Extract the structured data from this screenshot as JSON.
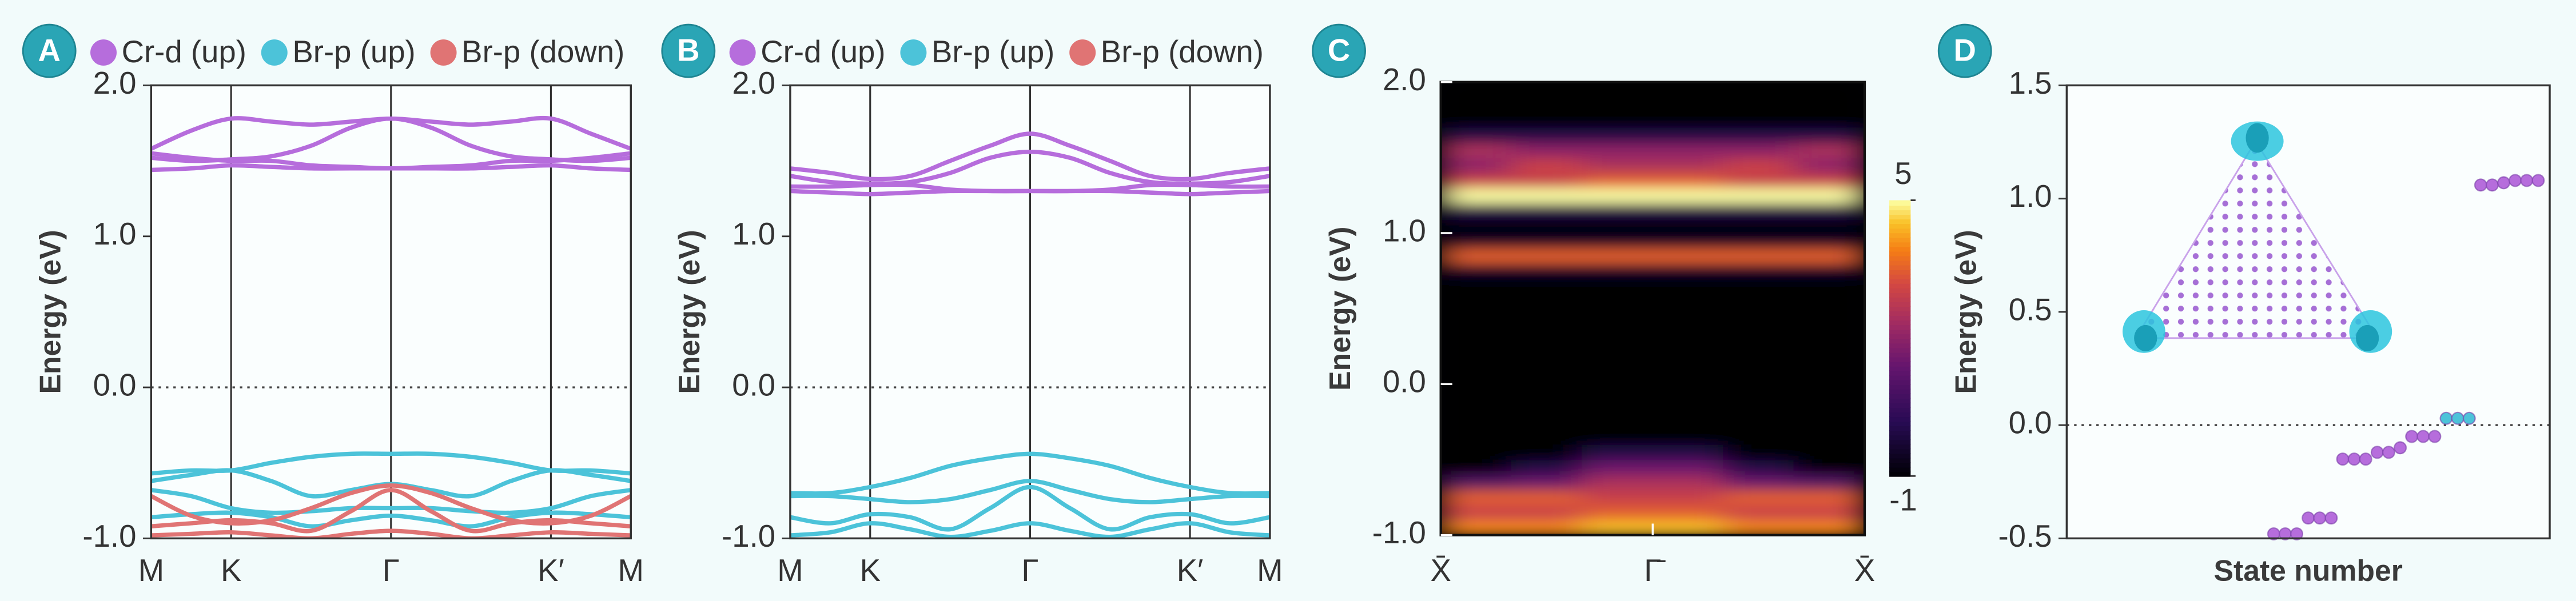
{
  "chart_data": [
    {
      "type": "band_structure",
      "panel_label": "A",
      "ylabel": "Energy (eV)",
      "x": [
        0,
        0.5,
        1,
        1.5,
        2,
        2.5,
        3,
        3.5,
        4,
        4.5,
        5,
        5.5,
        6
      ],
      "xlim": [
        0,
        6
      ],
      "xticks": [
        {
          "value": 0,
          "label": "M"
        },
        {
          "value": 1,
          "label": "K"
        },
        {
          "value": 3,
          "label": "Γ"
        },
        {
          "value": 5,
          "label": "K′"
        },
        {
          "value": 6,
          "label": "M"
        }
      ],
      "ylim": [
        -1,
        2
      ],
      "yticks": [
        {
          "value": -1,
          "label": "-1.0"
        },
        {
          "value": 0,
          "label": "0.0"
        },
        {
          "value": 1,
          "label": "1.0"
        },
        {
          "value": 2,
          "label": "2.0"
        }
      ],
      "hline": 0,
      "series": [
        {
          "name": "Cr-d (up)",
          "color": "#b66ddc",
          "bands": [
            [
              1.58,
              1.7,
              1.78,
              1.76,
              1.74,
              1.76,
              1.78,
              1.76,
              1.74,
              1.76,
              1.78,
              1.68,
              1.58
            ],
            [
              1.52,
              1.5,
              1.51,
              1.53,
              1.6,
              1.72,
              1.78,
              1.72,
              1.6,
              1.53,
              1.51,
              1.5,
              1.52
            ],
            [
              1.55,
              1.52,
              1.5,
              1.5,
              1.47,
              1.46,
              1.45,
              1.46,
              1.47,
              1.5,
              1.5,
              1.52,
              1.55
            ],
            [
              1.44,
              1.45,
              1.47,
              1.46,
              1.45,
              1.45,
              1.45,
              1.45,
              1.45,
              1.46,
              1.47,
              1.45,
              1.44
            ]
          ]
        },
        {
          "name": "Br-p (up)",
          "color": "#4cc3d9",
          "bands": [
            [
              -0.57,
              -0.55,
              -0.55,
              -0.5,
              -0.46,
              -0.44,
              -0.44,
              -0.44,
              -0.46,
              -0.5,
              -0.55,
              -0.55,
              -0.57
            ],
            [
              -0.62,
              -0.58,
              -0.55,
              -0.62,
              -0.72,
              -0.68,
              -0.64,
              -0.68,
              -0.72,
              -0.62,
              -0.55,
              -0.58,
              -0.62
            ],
            [
              -0.68,
              -0.72,
              -0.8,
              -0.83,
              -0.82,
              -0.8,
              -0.8,
              -0.8,
              -0.82,
              -0.83,
              -0.8,
              -0.72,
              -0.68
            ],
            [
              -0.86,
              -0.84,
              -0.83,
              -0.86,
              -0.92,
              -0.88,
              -0.85,
              -0.88,
              -0.92,
              -0.86,
              -0.83,
              -0.84,
              -0.86
            ]
          ]
        },
        {
          "name": "Br-p (down)",
          "color": "#e07474",
          "bands": [
            [
              -0.72,
              -0.85,
              -0.9,
              -0.88,
              -0.8,
              -0.7,
              -0.65,
              -0.7,
              -0.8,
              -0.88,
              -0.9,
              -0.85,
              -0.72
            ],
            [
              -0.92,
              -0.9,
              -0.88,
              -0.9,
              -0.95,
              -0.82,
              -0.68,
              -0.82,
              -0.95,
              -0.9,
              -0.88,
              -0.9,
              -0.92
            ],
            [
              -0.98,
              -0.97,
              -0.96,
              -0.98,
              -1.0,
              -0.97,
              -0.95,
              -0.97,
              -1.0,
              -0.98,
              -0.96,
              -0.97,
              -0.98
            ]
          ]
        }
      ]
    },
    {
      "type": "band_structure",
      "panel_label": "B",
      "ylabel": "Energy (eV)",
      "x": [
        0,
        0.5,
        1,
        1.5,
        2,
        2.5,
        3,
        3.5,
        4,
        4.5,
        5,
        5.5,
        6
      ],
      "xlim": [
        0,
        6
      ],
      "xticks": [
        {
          "value": 0,
          "label": "M"
        },
        {
          "value": 1,
          "label": "K"
        },
        {
          "value": 3,
          "label": "Γ"
        },
        {
          "value": 5,
          "label": "K′"
        },
        {
          "value": 6,
          "label": "M"
        }
      ],
      "ylim": [
        -1,
        2
      ],
      "yticks": [
        {
          "value": -1,
          "label": "-1.0"
        },
        {
          "value": 0,
          "label": "0.0"
        },
        {
          "value": 1,
          "label": "1.0"
        },
        {
          "value": 2,
          "label": "2.0"
        }
      ],
      "hline": 0,
      "series": [
        {
          "name": "Cr-d (up)",
          "color": "#b66ddc",
          "bands": [
            [
              1.45,
              1.42,
              1.38,
              1.4,
              1.5,
              1.6,
              1.68,
              1.6,
              1.5,
              1.4,
              1.38,
              1.42,
              1.45
            ],
            [
              1.4,
              1.36,
              1.35,
              1.36,
              1.42,
              1.52,
              1.56,
              1.52,
              1.42,
              1.36,
              1.35,
              1.36,
              1.4
            ],
            [
              1.33,
              1.33,
              1.34,
              1.34,
              1.31,
              1.3,
              1.3,
              1.3,
              1.31,
              1.34,
              1.34,
              1.33,
              1.33
            ],
            [
              1.3,
              1.29,
              1.28,
              1.29,
              1.3,
              1.3,
              1.3,
              1.3,
              1.3,
              1.29,
              1.28,
              1.29,
              1.3
            ]
          ]
        },
        {
          "name": "Br-p (up)",
          "color": "#4cc3d9",
          "bands": [
            [
              -0.7,
              -0.7,
              -0.66,
              -0.6,
              -0.52,
              -0.47,
              -0.44,
              -0.47,
              -0.52,
              -0.6,
              -0.66,
              -0.7,
              -0.7
            ],
            [
              -0.72,
              -0.72,
              -0.74,
              -0.76,
              -0.74,
              -0.68,
              -0.62,
              -0.68,
              -0.74,
              -0.76,
              -0.74,
              -0.72,
              -0.72
            ],
            [
              -0.86,
              -0.9,
              -0.84,
              -0.86,
              -0.94,
              -0.8,
              -0.66,
              -0.8,
              -0.94,
              -0.86,
              -0.84,
              -0.9,
              -0.86
            ],
            [
              -0.98,
              -0.96,
              -0.9,
              -0.94,
              -0.99,
              -0.95,
              -0.9,
              -0.95,
              -0.99,
              -0.94,
              -0.9,
              -0.96,
              -0.98
            ]
          ]
        },
        {
          "name": "Br-p (down)",
          "color": "#e07474"
        }
      ]
    },
    {
      "type": "heatmap",
      "panel_label": "C",
      "ylabel": "Energy (eV)",
      "xlim": [
        0,
        6
      ],
      "xticks": [
        {
          "value": 0,
          "label": "X̄"
        },
        {
          "value": 3,
          "label": "Γ̄"
        },
        {
          "value": 6,
          "label": "X̄"
        }
      ],
      "ylim": [
        -1,
        2
      ],
      "yticks": [
        {
          "value": -1,
          "label": "-1.0"
        },
        {
          "value": 0,
          "label": "0.0"
        },
        {
          "value": 1,
          "label": "1.0"
        },
        {
          "value": 2,
          "label": "2.0"
        }
      ],
      "xbins": [
        0,
        1,
        2,
        3,
        4,
        5,
        6
      ],
      "ybins": [
        -1.0,
        -0.9,
        -0.8,
        -0.7,
        -0.6,
        -0.5,
        -0.4,
        -0.3,
        -0.2,
        -0.1,
        0.0,
        0.1,
        0.2,
        0.3,
        0.4,
        0.5,
        0.6,
        0.7,
        0.8,
        0.9,
        1.0,
        1.1,
        1.2,
        1.3,
        1.4,
        1.5,
        1.6,
        1.7,
        1.8,
        1.9,
        2.0
      ],
      "z": [
        [
          4,
          4,
          4.5,
          4.5,
          4,
          4
        ],
        [
          3,
          3,
          3.5,
          3.5,
          3,
          3
        ],
        [
          3.5,
          3.5,
          3,
          3,
          3.5,
          3.5
        ],
        [
          1,
          1.5,
          2.5,
          2.5,
          1.5,
          1
        ],
        [
          -1,
          0,
          1.5,
          1.5,
          0,
          -1
        ],
        [
          -1,
          -1,
          0,
          0,
          -1,
          -1
        ],
        [
          -1,
          -1,
          -1,
          -1,
          -1,
          -1
        ],
        [
          -1,
          -1,
          -1,
          -1,
          -1,
          -1
        ],
        [
          -1,
          -1,
          -1,
          -1,
          -1,
          -1
        ],
        [
          -1,
          -1,
          -1,
          -1,
          -1,
          -1
        ],
        [
          -1,
          -1,
          -1,
          -1,
          -1,
          -1
        ],
        [
          -1,
          -1,
          -1,
          -1,
          -1,
          -1
        ],
        [
          -1,
          -1,
          -1,
          -1,
          -1,
          -1
        ],
        [
          -1,
          -1,
          -1,
          -1,
          -1,
          -1
        ],
        [
          -1,
          -1,
          -1,
          -1,
          -1,
          -1
        ],
        [
          -1,
          -1,
          -1,
          -1,
          -1,
          -1
        ],
        [
          -1,
          -1,
          -1,
          -1,
          -1,
          -1
        ],
        [
          -0.5,
          -0.5,
          -0.5,
          -0.5,
          -0.5,
          -0.5
        ],
        [
          3.5,
          3.5,
          3.5,
          3.5,
          3.5,
          3.5
        ],
        [
          -0.5,
          -0.5,
          -0.5,
          -0.5,
          -0.5,
          -0.5
        ],
        [
          -1,
          -1,
          -1,
          -1,
          -1,
          -1
        ],
        [
          0,
          0,
          0,
          0,
          0,
          0
        ],
        [
          5,
          5,
          5,
          5,
          5,
          5
        ],
        [
          3,
          3,
          3.5,
          3.5,
          3,
          3
        ],
        [
          2,
          3,
          2.5,
          2.5,
          3,
          2
        ],
        [
          2.5,
          2,
          2,
          2,
          2,
          2.5
        ],
        [
          0,
          0,
          0,
          0,
          0,
          0
        ],
        [
          -1,
          -1,
          -1,
          -1,
          -1,
          -1
        ],
        [
          -1,
          -1,
          -1,
          -1,
          -1,
          -1
        ],
        [
          -1,
          -1,
          -1,
          -1,
          -1,
          -1
        ]
      ],
      "clim": [
        -1,
        5
      ],
      "cticks": [
        -1,
        5
      ],
      "colormap": "inferno"
    },
    {
      "type": "scatter",
      "panel_label": "D",
      "ylabel": "Energy (eV)",
      "xlabel": "State number",
      "xlim": [
        0,
        42
      ],
      "ylim": [
        -0.5,
        1.5
      ],
      "yticks": [
        -0.5,
        {
          "value": 0,
          "label": "0.0"
        },
        0.5,
        {
          "value": 1,
          "label": "1.0"
        },
        1.5
      ],
      "hline": 0,
      "series": [
        {
          "color": "#b66ddc",
          "x": [
            18,
            19,
            20,
            21,
            22,
            23,
            24,
            25,
            26,
            27,
            28,
            29,
            30,
            31,
            32,
            36,
            37,
            38,
            39,
            40,
            41
          ],
          "values": [
            -0.48,
            -0.48,
            -0.48,
            -0.41,
            -0.41,
            -0.41,
            -0.15,
            -0.15,
            -0.15,
            -0.12,
            -0.12,
            -0.1,
            -0.05,
            -0.05,
            -0.05,
            1.06,
            1.06,
            1.07,
            1.08,
            1.08,
            1.08
          ]
        },
        {
          "color": "#4cc3d9",
          "x": [
            33,
            34,
            35
          ],
          "values": [
            0.03,
            0.03,
            0.03
          ]
        }
      ]
    }
  ]
}
